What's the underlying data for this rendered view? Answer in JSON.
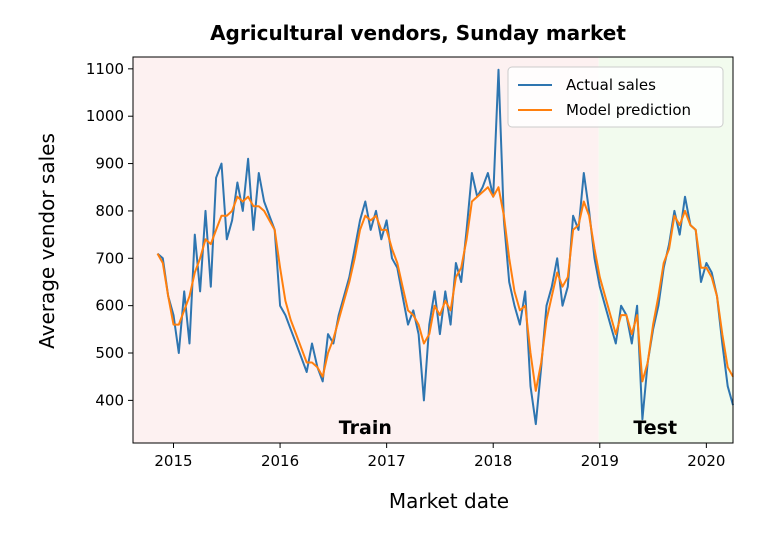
{
  "chart_data": {
    "type": "line",
    "title": "Agricultural vendors, Sunday market",
    "xlabel": "Market date",
    "ylabel": "Average vendor sales",
    "xlim": [
      2014.62,
      2020.25
    ],
    "ylim": [
      310,
      1125
    ],
    "x_ticks": [
      2015,
      2016,
      2017,
      2018,
      2019,
      2020
    ],
    "x_tick_labels": [
      "2015",
      "2016",
      "2017",
      "2018",
      "2019",
      "2020"
    ],
    "y_ticks": [
      400,
      500,
      600,
      700,
      800,
      900,
      1000,
      1100
    ],
    "y_tick_labels": [
      "400",
      "500",
      "600",
      "700",
      "800",
      "900",
      "1000",
      "1100"
    ],
    "grid": false,
    "legend_position": "top-right",
    "regions": [
      {
        "label": "Train",
        "x_start": 2014.62,
        "x_end": 2018.99,
        "color": "#fdf1f1"
      },
      {
        "label": "Test",
        "x_start": 2018.99,
        "x_end": 2020.25,
        "color": "#f2fbee"
      }
    ],
    "series": [
      {
        "name": "Actual sales",
        "color": "#2e75b0",
        "points": [
          [
            2014.85,
            710
          ],
          [
            2014.9,
            700
          ],
          [
            2014.95,
            620
          ],
          [
            2015.0,
            580
          ],
          [
            2015.05,
            500
          ],
          [
            2015.1,
            630
          ],
          [
            2015.15,
            520
          ],
          [
            2015.2,
            750
          ],
          [
            2015.25,
            630
          ],
          [
            2015.3,
            800
          ],
          [
            2015.35,
            640
          ],
          [
            2015.4,
            870
          ],
          [
            2015.45,
            900
          ],
          [
            2015.5,
            740
          ],
          [
            2015.55,
            780
          ],
          [
            2015.6,
            860
          ],
          [
            2015.65,
            800
          ],
          [
            2015.7,
            910
          ],
          [
            2015.75,
            760
          ],
          [
            2015.8,
            880
          ],
          [
            2015.85,
            820
          ],
          [
            2015.9,
            790
          ],
          [
            2015.95,
            760
          ],
          [
            2016.0,
            600
          ],
          [
            2016.05,
            580
          ],
          [
            2016.1,
            550
          ],
          [
            2016.15,
            520
          ],
          [
            2016.2,
            490
          ],
          [
            2016.25,
            460
          ],
          [
            2016.3,
            520
          ],
          [
            2016.35,
            470
          ],
          [
            2016.4,
            440
          ],
          [
            2016.45,
            540
          ],
          [
            2016.5,
            520
          ],
          [
            2016.55,
            580
          ],
          [
            2016.6,
            620
          ],
          [
            2016.65,
            660
          ],
          [
            2016.7,
            720
          ],
          [
            2016.75,
            780
          ],
          [
            2016.8,
            820
          ],
          [
            2016.85,
            760
          ],
          [
            2016.9,
            800
          ],
          [
            2016.95,
            740
          ],
          [
            2017.0,
            780
          ],
          [
            2017.05,
            700
          ],
          [
            2017.1,
            680
          ],
          [
            2017.15,
            620
          ],
          [
            2017.2,
            560
          ],
          [
            2017.25,
            590
          ],
          [
            2017.3,
            540
          ],
          [
            2017.35,
            400
          ],
          [
            2017.4,
            560
          ],
          [
            2017.45,
            630
          ],
          [
            2017.5,
            540
          ],
          [
            2017.55,
            630
          ],
          [
            2017.6,
            560
          ],
          [
            2017.65,
            690
          ],
          [
            2017.7,
            650
          ],
          [
            2017.75,
            760
          ],
          [
            2017.8,
            880
          ],
          [
            2017.85,
            830
          ],
          [
            2017.9,
            850
          ],
          [
            2017.95,
            880
          ],
          [
            2018.0,
            830
          ],
          [
            2018.05,
            1098
          ],
          [
            2018.1,
            780
          ],
          [
            2018.15,
            650
          ],
          [
            2018.2,
            600
          ],
          [
            2018.25,
            560
          ],
          [
            2018.3,
            630
          ],
          [
            2018.35,
            430
          ],
          [
            2018.4,
            350
          ],
          [
            2018.45,
            470
          ],
          [
            2018.5,
            600
          ],
          [
            2018.55,
            640
          ],
          [
            2018.6,
            700
          ],
          [
            2018.65,
            600
          ],
          [
            2018.7,
            640
          ],
          [
            2018.75,
            790
          ],
          [
            2018.8,
            760
          ],
          [
            2018.85,
            880
          ],
          [
            2018.9,
            800
          ],
          [
            2018.95,
            700
          ],
          [
            2019.0,
            640
          ],
          [
            2019.05,
            600
          ],
          [
            2019.1,
            560
          ],
          [
            2019.15,
            520
          ],
          [
            2019.2,
            600
          ],
          [
            2019.25,
            580
          ],
          [
            2019.3,
            520
          ],
          [
            2019.35,
            600
          ],
          [
            2019.4,
            360
          ],
          [
            2019.45,
            480
          ],
          [
            2019.5,
            550
          ],
          [
            2019.55,
            600
          ],
          [
            2019.6,
            680
          ],
          [
            2019.65,
            730
          ],
          [
            2019.7,
            800
          ],
          [
            2019.75,
            750
          ],
          [
            2019.8,
            830
          ],
          [
            2019.85,
            770
          ],
          [
            2019.9,
            760
          ],
          [
            2019.95,
            650
          ],
          [
            2020.0,
            690
          ],
          [
            2020.05,
            670
          ],
          [
            2020.1,
            620
          ],
          [
            2020.15,
            520
          ],
          [
            2020.2,
            430
          ],
          [
            2020.25,
            390
          ]
        ]
      },
      {
        "name": "Model prediction",
        "color": "#ff7f0e",
        "points": [
          [
            2014.85,
            710
          ],
          [
            2014.9,
            690
          ],
          [
            2014.95,
            620
          ],
          [
            2015.0,
            560
          ],
          [
            2015.05,
            560
          ],
          [
            2015.1,
            590
          ],
          [
            2015.15,
            620
          ],
          [
            2015.2,
            670
          ],
          [
            2015.25,
            700
          ],
          [
            2015.3,
            740
          ],
          [
            2015.35,
            730
          ],
          [
            2015.4,
            760
          ],
          [
            2015.45,
            790
          ],
          [
            2015.5,
            790
          ],
          [
            2015.55,
            800
          ],
          [
            2015.6,
            830
          ],
          [
            2015.65,
            820
          ],
          [
            2015.7,
            830
          ],
          [
            2015.75,
            810
          ],
          [
            2015.8,
            810
          ],
          [
            2015.85,
            800
          ],
          [
            2015.9,
            780
          ],
          [
            2015.95,
            760
          ],
          [
            2016.0,
            680
          ],
          [
            2016.05,
            610
          ],
          [
            2016.1,
            570
          ],
          [
            2016.15,
            540
          ],
          [
            2016.2,
            510
          ],
          [
            2016.25,
            480
          ],
          [
            2016.3,
            480
          ],
          [
            2016.35,
            470
          ],
          [
            2016.4,
            450
          ],
          [
            2016.45,
            500
          ],
          [
            2016.5,
            530
          ],
          [
            2016.55,
            570
          ],
          [
            2016.6,
            610
          ],
          [
            2016.65,
            650
          ],
          [
            2016.7,
            700
          ],
          [
            2016.75,
            760
          ],
          [
            2016.8,
            790
          ],
          [
            2016.85,
            780
          ],
          [
            2016.9,
            790
          ],
          [
            2016.95,
            760
          ],
          [
            2017.0,
            760
          ],
          [
            2017.05,
            720
          ],
          [
            2017.1,
            690
          ],
          [
            2017.15,
            640
          ],
          [
            2017.2,
            590
          ],
          [
            2017.25,
            580
          ],
          [
            2017.3,
            560
          ],
          [
            2017.35,
            520
          ],
          [
            2017.4,
            540
          ],
          [
            2017.45,
            600
          ],
          [
            2017.5,
            580
          ],
          [
            2017.55,
            610
          ],
          [
            2017.6,
            590
          ],
          [
            2017.65,
            660
          ],
          [
            2017.7,
            680
          ],
          [
            2017.75,
            740
          ],
          [
            2017.8,
            820
          ],
          [
            2017.85,
            830
          ],
          [
            2017.9,
            840
          ],
          [
            2017.95,
            850
          ],
          [
            2018.0,
            830
          ],
          [
            2018.05,
            850
          ],
          [
            2018.1,
            790
          ],
          [
            2018.15,
            700
          ],
          [
            2018.2,
            630
          ],
          [
            2018.25,
            590
          ],
          [
            2018.3,
            600
          ],
          [
            2018.35,
            500
          ],
          [
            2018.4,
            420
          ],
          [
            2018.45,
            480
          ],
          [
            2018.5,
            570
          ],
          [
            2018.55,
            620
          ],
          [
            2018.6,
            670
          ],
          [
            2018.65,
            640
          ],
          [
            2018.7,
            660
          ],
          [
            2018.75,
            760
          ],
          [
            2018.8,
            770
          ],
          [
            2018.85,
            820
          ],
          [
            2018.9,
            790
          ],
          [
            2018.95,
            720
          ],
          [
            2019.0,
            660
          ],
          [
            2019.05,
            620
          ],
          [
            2019.1,
            580
          ],
          [
            2019.15,
            540
          ],
          [
            2019.2,
            580
          ],
          [
            2019.25,
            580
          ],
          [
            2019.3,
            540
          ],
          [
            2019.35,
            580
          ],
          [
            2019.4,
            440
          ],
          [
            2019.45,
            480
          ],
          [
            2019.5,
            560
          ],
          [
            2019.55,
            620
          ],
          [
            2019.6,
            690
          ],
          [
            2019.65,
            720
          ],
          [
            2019.7,
            790
          ],
          [
            2019.75,
            770
          ],
          [
            2019.8,
            800
          ],
          [
            2019.85,
            770
          ],
          [
            2019.9,
            760
          ],
          [
            2019.95,
            680
          ],
          [
            2020.0,
            680
          ],
          [
            2020.05,
            660
          ],
          [
            2020.1,
            620
          ],
          [
            2020.15,
            540
          ],
          [
            2020.2,
            470
          ],
          [
            2020.25,
            450
          ]
        ]
      }
    ]
  }
}
